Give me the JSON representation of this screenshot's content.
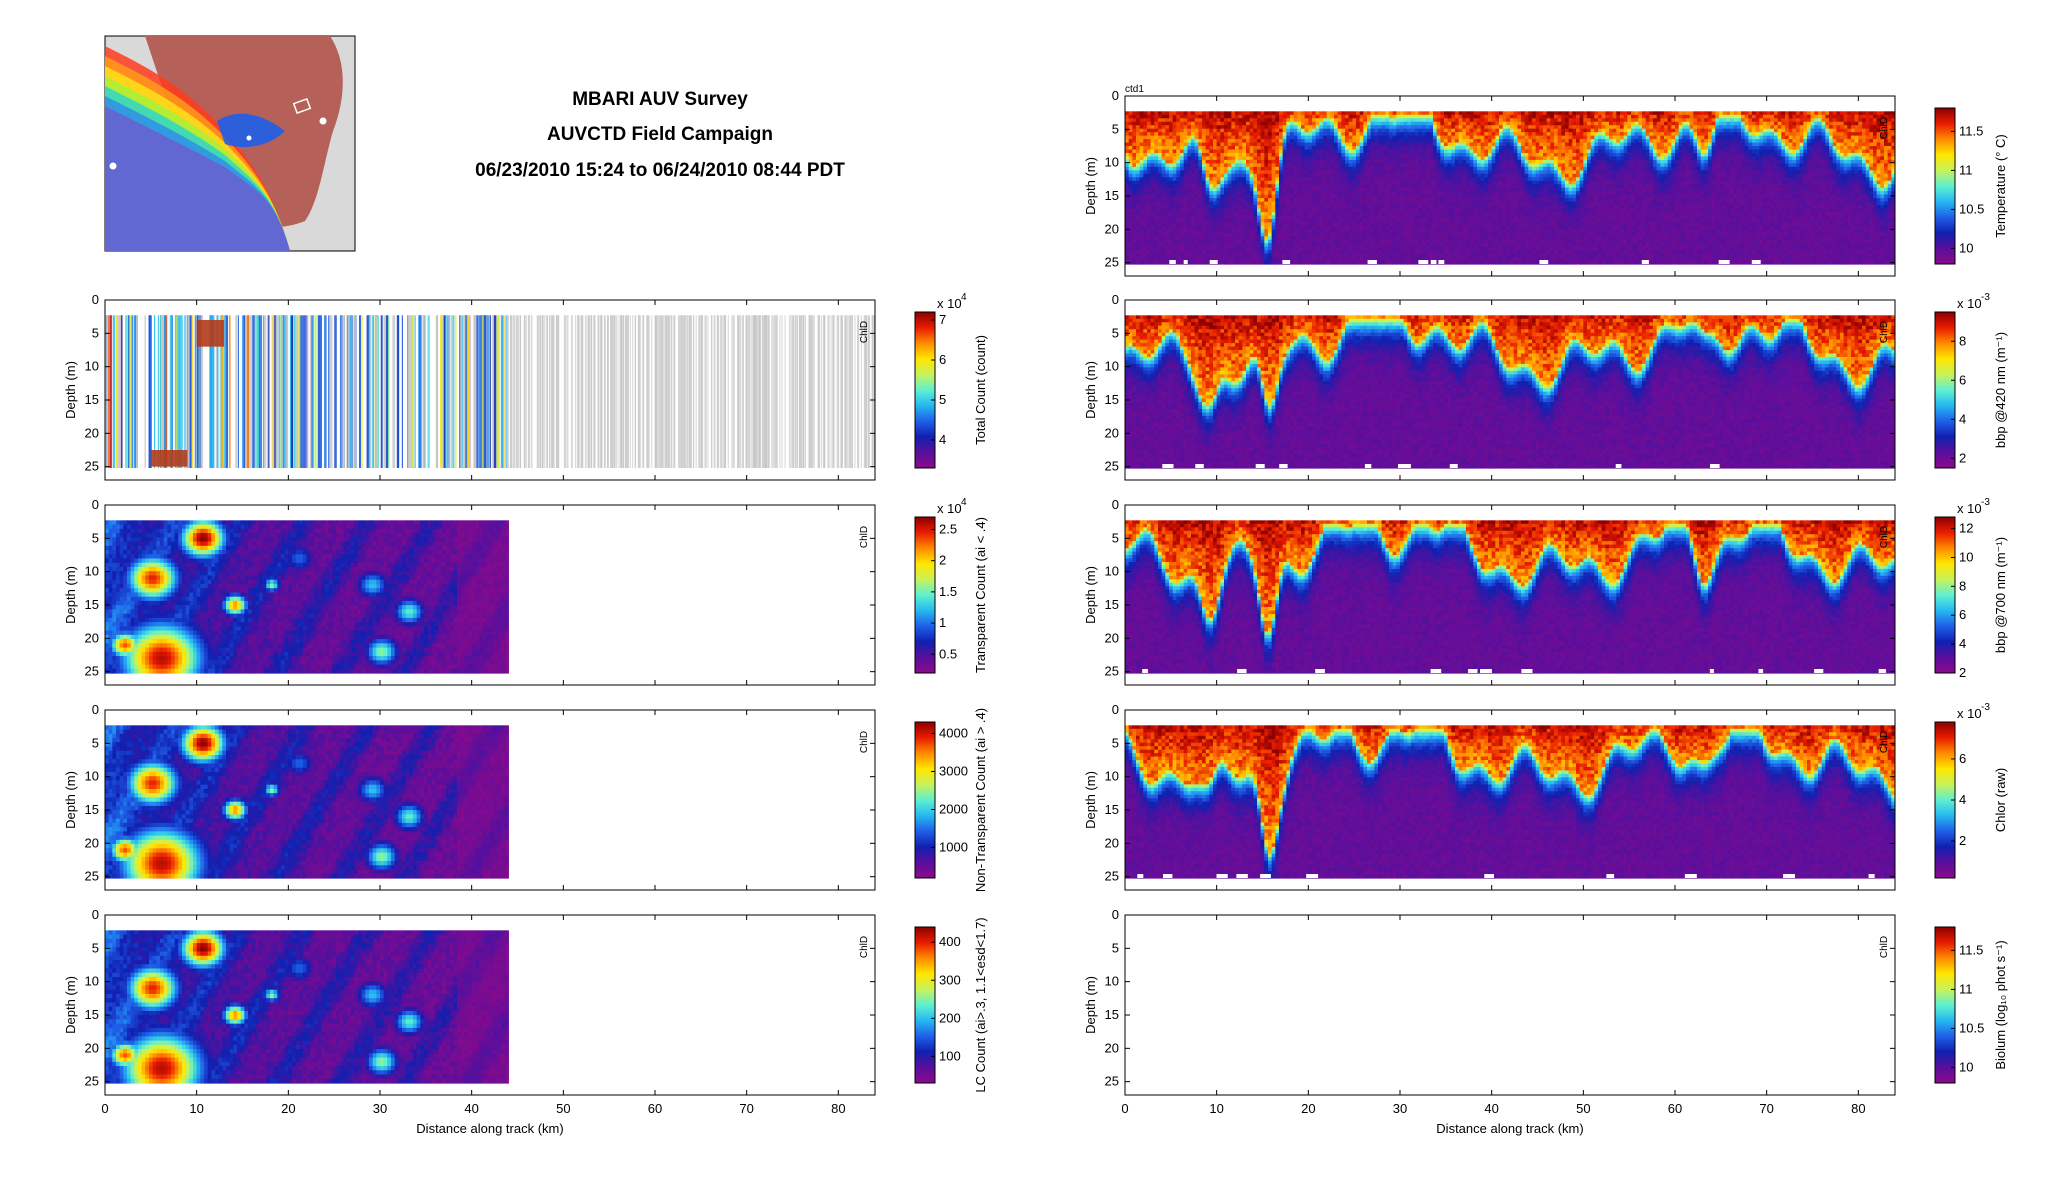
{
  "header": {
    "line1": "MBARI AUV Survey",
    "line2": "AUVCTD Field Campaign",
    "line3": "06/23/2010 15:24 to 06/24/2010 08:44 PDT"
  },
  "panel_tag": "ctd1",
  "marker_text": "ChlD",
  "chart_data": [
    {
      "type": "heatmap",
      "column": "left",
      "row": 0,
      "title": "",
      "xlabel": "",
      "ylabel": "Depth (m)",
      "xlim": [
        0,
        84
      ],
      "ylim": [
        27,
        0
      ],
      "yticks": [
        0,
        5,
        10,
        15,
        20,
        25
      ],
      "xticks": [],
      "data_extent_km": [
        0,
        44
      ],
      "colorbar": {
        "label": "Total Count (count)",
        "exponent": "x 10",
        "power": "4",
        "range": [
          3.3,
          7.2
        ],
        "ticks": [
          "4",
          "5",
          "6",
          "7"
        ]
      },
      "style": "sparse"
    },
    {
      "type": "heatmap",
      "column": "left",
      "row": 1,
      "title": "",
      "xlabel": "",
      "ylabel": "Depth (m)",
      "xlim": [
        0,
        84
      ],
      "ylim": [
        27,
        0
      ],
      "yticks": [
        0,
        5,
        10,
        15,
        20,
        25
      ],
      "xticks": [],
      "data_extent_km": [
        0,
        44
      ],
      "colorbar": {
        "label": "Transparent Count (ai < .4)",
        "exponent": "x 10",
        "power": "4",
        "range": [
          0.2,
          2.7
        ],
        "ticks": [
          "0.5",
          "1",
          "1.5",
          "2",
          "2.5"
        ]
      },
      "style": "blobs"
    },
    {
      "type": "heatmap",
      "column": "left",
      "row": 2,
      "title": "",
      "xlabel": "",
      "ylabel": "Depth (m)",
      "xlim": [
        0,
        84
      ],
      "ylim": [
        27,
        0
      ],
      "yticks": [
        0,
        5,
        10,
        15,
        20,
        25
      ],
      "xticks": [],
      "data_extent_km": [
        0,
        44
      ],
      "colorbar": {
        "label": "Non-Transparent Count (ai > .4)",
        "exponent": "",
        "power": "",
        "range": [
          200,
          4300
        ],
        "ticks": [
          "1000",
          "2000",
          "3000",
          "4000"
        ]
      },
      "style": "blobs"
    },
    {
      "type": "heatmap",
      "column": "left",
      "row": 3,
      "title": "",
      "xlabel": "Distance along track (km)",
      "ylabel": "Depth (m)",
      "xlim": [
        0,
        84
      ],
      "ylim": [
        27,
        0
      ],
      "yticks": [
        0,
        5,
        10,
        15,
        20,
        25
      ],
      "xticks": [
        0,
        10,
        20,
        30,
        40,
        50,
        60,
        70,
        80
      ],
      "data_extent_km": [
        0,
        44
      ],
      "colorbar": {
        "label": "LC Count (ai>.3, 1.1<esd<1.7)",
        "exponent": "",
        "power": "",
        "range": [
          30,
          440
        ],
        "ticks": [
          "100",
          "200",
          "300",
          "400"
        ]
      },
      "style": "blobs"
    },
    {
      "type": "heatmap",
      "column": "right",
      "row": 0,
      "title": "",
      "xlabel": "",
      "ylabel": "Depth (m)",
      "xlim": [
        0,
        84
      ],
      "ylim": [
        27,
        0
      ],
      "yticks": [
        0,
        5,
        10,
        15,
        20,
        25
      ],
      "xticks": [],
      "data_extent_km": [
        0,
        84
      ],
      "colorbar": {
        "label": "Temperature (° C)",
        "exponent": "",
        "power": "",
        "range": [
          9.8,
          11.8
        ],
        "ticks": [
          "10",
          "10.5",
          "11",
          "11.5"
        ]
      },
      "style": "layered"
    },
    {
      "type": "heatmap",
      "column": "right",
      "row": 1,
      "title": "",
      "xlabel": "",
      "ylabel": "Depth (m)",
      "xlim": [
        0,
        84
      ],
      "ylim": [
        27,
        0
      ],
      "yticks": [
        0,
        5,
        10,
        15,
        20,
        25
      ],
      "xticks": [],
      "data_extent_km": [
        0,
        84
      ],
      "colorbar": {
        "label": "bbp @420 nm (m⁻¹)",
        "exponent": "x 10",
        "power": "-3",
        "range": [
          1.5,
          9.5
        ],
        "ticks": [
          "2",
          "4",
          "6",
          "8"
        ]
      },
      "style": "layered"
    },
    {
      "type": "heatmap",
      "column": "right",
      "row": 2,
      "title": "",
      "xlabel": "",
      "ylabel": "Depth (m)",
      "xlim": [
        0,
        84
      ],
      "ylim": [
        27,
        0
      ],
      "yticks": [
        0,
        5,
        10,
        15,
        20,
        25
      ],
      "xticks": [],
      "data_extent_km": [
        0,
        84
      ],
      "colorbar": {
        "label": "bbp @700 nm (m⁻¹)",
        "exponent": "x 10",
        "power": "-3",
        "range": [
          2,
          12.8
        ],
        "ticks": [
          "2",
          "4",
          "6",
          "8",
          "10",
          "12"
        ]
      },
      "style": "layered"
    },
    {
      "type": "heatmap",
      "column": "right",
      "row": 3,
      "title": "",
      "xlabel": "",
      "ylabel": "Depth (m)",
      "xlim": [
        0,
        84
      ],
      "ylim": [
        27,
        0
      ],
      "yticks": [
        0,
        5,
        10,
        15,
        20,
        25
      ],
      "xticks": [],
      "data_extent_km": [
        0,
        84
      ],
      "colorbar": {
        "label": "Chlor (raw)",
        "exponent": "x 10",
        "power": "-3",
        "range": [
          0.2,
          7.8
        ],
        "ticks": [
          "2",
          "4",
          "6"
        ]
      },
      "style": "layered"
    },
    {
      "type": "heatmap",
      "column": "right",
      "row": 4,
      "title": "",
      "xlabel": "Distance along track (km)",
      "ylabel": "Depth (m)",
      "xlim": [
        0,
        84
      ],
      "ylim": [
        27,
        0
      ],
      "yticks": [
        0,
        5,
        10,
        15,
        20,
        25
      ],
      "xticks": [
        0,
        10,
        20,
        30,
        40,
        50,
        60,
        70,
        80
      ],
      "data_extent_km": [
        0,
        0
      ],
      "colorbar": {
        "label": "Biolum (log₁₀ phot s⁻¹)",
        "exponent": "",
        "power": "",
        "range": [
          9.8,
          11.8
        ],
        "ticks": [
          "10",
          "10.5",
          "11",
          "11.5"
        ]
      },
      "style": "empty"
    }
  ],
  "colors": {
    "jet": [
      "#8b0a8b",
      "#5a0f9c",
      "#1020b0",
      "#1f5fe8",
      "#25b8f0",
      "#5ff0d0",
      "#c8f25a",
      "#ffe600",
      "#ff8a00",
      "#e81c00",
      "#8b0000"
    ],
    "map_land": "#d9d9d9",
    "map_water": "#b5615a",
    "sparse_gray": "#c8c8c8",
    "missing_white": "#ffffff"
  }
}
